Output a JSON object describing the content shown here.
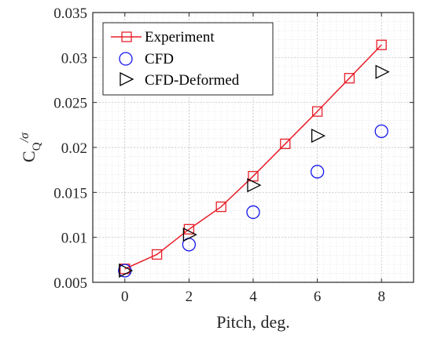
{
  "chart_data": {
    "type": "line",
    "xlabel": "Pitch, deg.",
    "ylabel": {
      "main": "C",
      "sub": "Q",
      "suffix": "/σ"
    },
    "xlim": [
      -1,
      9
    ],
    "ylim": [
      0.005,
      0.035
    ],
    "xticks": [
      0,
      2,
      4,
      6,
      8
    ],
    "xtick_labels": [
      "0",
      "2",
      "4",
      "6",
      "8"
    ],
    "yticks": [
      0.005,
      0.01,
      0.015,
      0.02,
      0.025,
      0.03,
      0.035
    ],
    "ytick_labels": [
      "0.005",
      "0.01",
      "0.015",
      "0.02",
      "0.025",
      "0.03",
      "0.035"
    ],
    "grid": "on (major and minor, dotted)",
    "legend_position": "top-left",
    "series": [
      {
        "name": "Experiment",
        "style": "line+square",
        "color": "#e8202a",
        "x": [
          0,
          1,
          2,
          3,
          4,
          5,
          6,
          7,
          8
        ],
        "y": [
          0.0065,
          0.0081,
          0.0109,
          0.0134,
          0.0168,
          0.0204,
          0.024,
          0.0277,
          0.0314
        ]
      },
      {
        "name": "CFD",
        "style": "circle",
        "color": "#1414f0",
        "x": [
          0,
          2,
          4,
          6,
          8
        ],
        "y": [
          0.0063,
          0.0092,
          0.0128,
          0.0173,
          0.0218
        ]
      },
      {
        "name": "CFD-Deformed",
        "style": "triangle-right",
        "color": "#000000",
        "x": [
          0,
          2,
          4,
          6,
          8
        ],
        "y": [
          0.0063,
          0.0103,
          0.0158,
          0.0213,
          0.0284
        ]
      }
    ]
  }
}
